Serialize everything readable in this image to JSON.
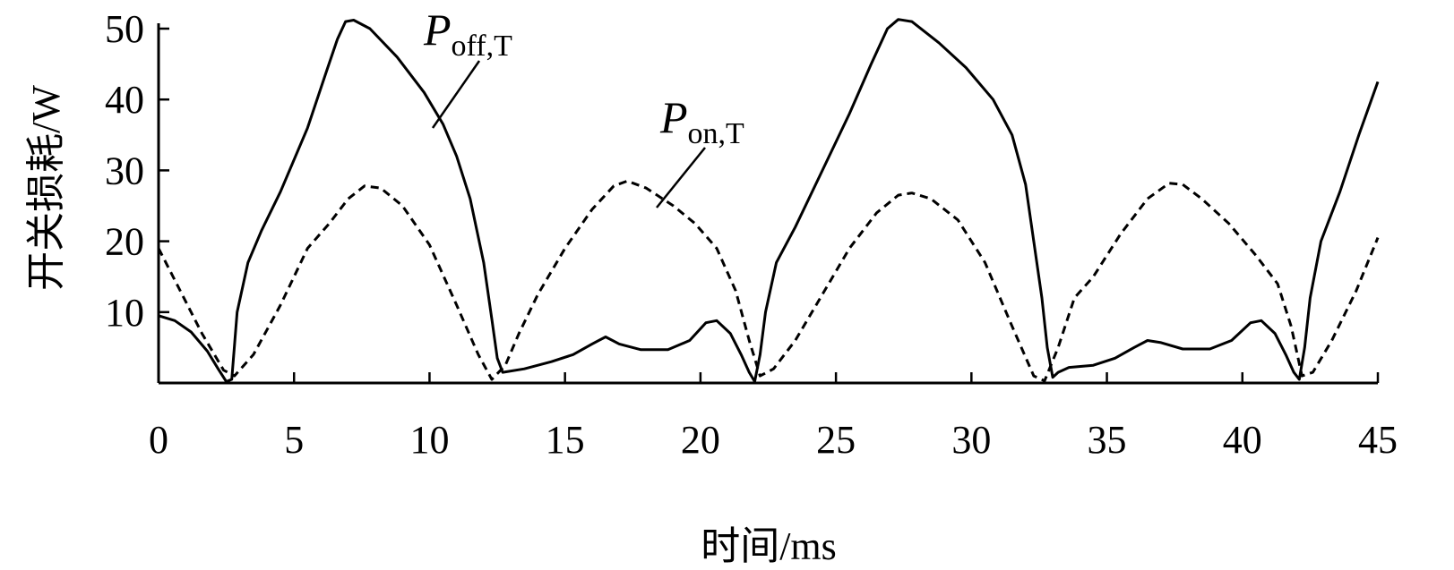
{
  "chart_data": {
    "type": "line",
    "xlabel": "时间/ms",
    "ylabel": "开关损耗/W",
    "xlim": [
      0,
      45
    ],
    "ylim": [
      0,
      50
    ],
    "xticks": [
      0,
      5,
      10,
      15,
      20,
      25,
      30,
      35,
      40,
      45
    ],
    "yticks": [
      10,
      20,
      30,
      40,
      50
    ],
    "xtick_labels": [
      "0",
      "5",
      "10",
      "15",
      "20",
      "25",
      "30",
      "35",
      "40",
      "45"
    ],
    "ytick_labels": [
      "10",
      "20",
      "30",
      "40",
      "50"
    ],
    "grid": false,
    "series": [
      {
        "name": "P_off,T",
        "label_main": "P",
        "label_sub": "off,T",
        "style": "solid",
        "color": "#000000",
        "points": [
          [
            0,
            9.5
          ],
          [
            0.6,
            8.8
          ],
          [
            1.2,
            7.2
          ],
          [
            1.8,
            4.5
          ],
          [
            2.2,
            2.0
          ],
          [
            2.5,
            0.2
          ],
          [
            2.7,
            0.5
          ],
          [
            2.9,
            10.0
          ],
          [
            3.3,
            17.0
          ],
          [
            3.8,
            21.5
          ],
          [
            4.5,
            27.0
          ],
          [
            5.5,
            36.0
          ],
          [
            6.2,
            44.0
          ],
          [
            6.6,
            48.5
          ],
          [
            6.9,
            51.0
          ],
          [
            7.2,
            51.2
          ],
          [
            7.8,
            50.0
          ],
          [
            8.8,
            46.0
          ],
          [
            9.8,
            41.0
          ],
          [
            10.5,
            36.5
          ],
          [
            11.0,
            32.0
          ],
          [
            11.5,
            26.0
          ],
          [
            12.0,
            17.0
          ],
          [
            12.3,
            9.0
          ],
          [
            12.5,
            3.5
          ],
          [
            12.7,
            1.5
          ],
          [
            13.5,
            2.0
          ],
          [
            14.5,
            3.0
          ],
          [
            15.3,
            4.0
          ],
          [
            16.0,
            5.5
          ],
          [
            16.5,
            6.5
          ],
          [
            17.0,
            5.5
          ],
          [
            17.8,
            4.7
          ],
          [
            18.8,
            4.7
          ],
          [
            19.6,
            6.0
          ],
          [
            20.2,
            8.5
          ],
          [
            20.6,
            8.8
          ],
          [
            21.1,
            7.0
          ],
          [
            21.5,
            4.0
          ],
          [
            21.8,
            1.5
          ],
          [
            22.0,
            0.2
          ],
          [
            22.2,
            4.0
          ],
          [
            22.4,
            10.0
          ],
          [
            22.8,
            17.0
          ],
          [
            23.5,
            22.0
          ],
          [
            24.5,
            30.0
          ],
          [
            25.5,
            38.0
          ],
          [
            26.3,
            45.0
          ],
          [
            26.9,
            50.0
          ],
          [
            27.3,
            51.3
          ],
          [
            27.8,
            51.0
          ],
          [
            28.8,
            48.0
          ],
          [
            29.8,
            44.5
          ],
          [
            30.8,
            40.0
          ],
          [
            31.5,
            35.0
          ],
          [
            32.0,
            28.0
          ],
          [
            32.3,
            20.0
          ],
          [
            32.6,
            12.0
          ],
          [
            32.8,
            5.0
          ],
          [
            33.0,
            0.8
          ],
          [
            33.2,
            1.5
          ],
          [
            33.6,
            2.2
          ],
          [
            34.5,
            2.5
          ],
          [
            35.3,
            3.5
          ],
          [
            36.0,
            5.0
          ],
          [
            36.5,
            6.0
          ],
          [
            37.0,
            5.7
          ],
          [
            37.8,
            4.8
          ],
          [
            38.8,
            4.8
          ],
          [
            39.6,
            6.0
          ],
          [
            40.3,
            8.5
          ],
          [
            40.7,
            8.8
          ],
          [
            41.2,
            7.0
          ],
          [
            41.6,
            4.0
          ],
          [
            41.9,
            1.5
          ],
          [
            42.1,
            0.5
          ],
          [
            42.3,
            5.0
          ],
          [
            42.5,
            12.0
          ],
          [
            42.9,
            20.0
          ],
          [
            43.6,
            27.0
          ],
          [
            44.3,
            35.0
          ],
          [
            45.0,
            42.5
          ]
        ]
      },
      {
        "name": "P_on,T",
        "label_main": "P",
        "label_sub": "on,T",
        "style": "dashed",
        "color": "#000000",
        "points": [
          [
            0,
            19.0
          ],
          [
            0.8,
            13.0
          ],
          [
            1.6,
            7.0
          ],
          [
            2.4,
            1.8
          ],
          [
            2.8,
            1.0
          ],
          [
            3.5,
            4.0
          ],
          [
            4.5,
            11.0
          ],
          [
            5.5,
            19.0
          ],
          [
            6.3,
            22.5
          ],
          [
            7.0,
            26.0
          ],
          [
            7.6,
            27.8
          ],
          [
            8.2,
            27.5
          ],
          [
            9.0,
            25.0
          ],
          [
            10.0,
            19.5
          ],
          [
            11.0,
            11.0
          ],
          [
            11.8,
            4.0
          ],
          [
            12.3,
            0.5
          ],
          [
            12.8,
            2.5
          ],
          [
            13.3,
            7.0
          ],
          [
            14.0,
            12.5
          ],
          [
            15.0,
            19.0
          ],
          [
            16.0,
            24.5
          ],
          [
            16.8,
            27.8
          ],
          [
            17.3,
            28.5
          ],
          [
            18.0,
            27.5
          ],
          [
            19.0,
            25.0
          ],
          [
            19.8,
            22.5
          ],
          [
            20.6,
            19.0
          ],
          [
            21.3,
            13.0
          ],
          [
            21.8,
            6.0
          ],
          [
            22.2,
            1.0
          ],
          [
            22.7,
            2.0
          ],
          [
            23.5,
            6.0
          ],
          [
            24.5,
            12.5
          ],
          [
            25.5,
            19.0
          ],
          [
            26.5,
            24.0
          ],
          [
            27.3,
            26.5
          ],
          [
            27.8,
            26.8
          ],
          [
            28.5,
            26.0
          ],
          [
            29.5,
            23.0
          ],
          [
            30.5,
            17.0
          ],
          [
            31.5,
            8.0
          ],
          [
            32.3,
            1.0
          ],
          [
            32.7,
            0.3
          ],
          [
            33.2,
            5.0
          ],
          [
            33.8,
            12.0
          ],
          [
            34.5,
            15.0
          ],
          [
            35.5,
            21.0
          ],
          [
            36.5,
            26.0
          ],
          [
            37.3,
            28.2
          ],
          [
            37.8,
            28.0
          ],
          [
            38.5,
            26.0
          ],
          [
            39.5,
            22.5
          ],
          [
            40.5,
            18.0
          ],
          [
            41.3,
            14.0
          ],
          [
            41.8,
            8.0
          ],
          [
            42.2,
            1.0
          ],
          [
            42.6,
            1.5
          ],
          [
            43.3,
            6.0
          ],
          [
            44.2,
            13.0
          ],
          [
            45.0,
            20.5
          ]
        ]
      }
    ]
  }
}
